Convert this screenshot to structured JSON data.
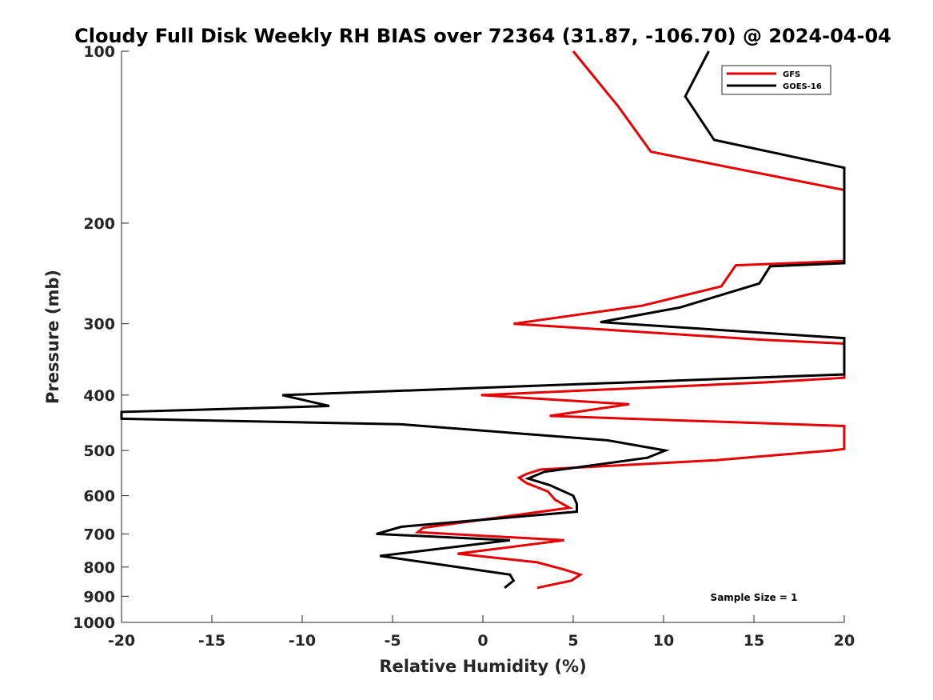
{
  "chart_data": {
    "type": "line",
    "title": "Cloudy Full Disk Weekly RH BIAS over 72364 (31.87, -106.70) @ 2024-04-04",
    "xlabel": "Relative Humidity (%)",
    "ylabel": "Pressure (mb)",
    "xlim": [
      -20,
      20
    ],
    "ylim": [
      100,
      1000
    ],
    "y_scale": "log",
    "y_reversed": true,
    "x_ticks": [
      "-20",
      "-15",
      "-10",
      "-5",
      "0",
      "5",
      "10",
      "15",
      "20"
    ],
    "y_ticks": [
      "100",
      "200",
      "300",
      "400",
      "500",
      "600",
      "700",
      "800",
      "900",
      "1000"
    ],
    "legend_position": "top-right",
    "annotation": "Sample Size = 1",
    "series": [
      {
        "name": "GFS",
        "color": "#e60000",
        "points": [
          [
            5.0,
            100
          ],
          [
            7.5,
            125
          ],
          [
            9.3,
            150
          ],
          [
            20,
            175
          ],
          [
            20,
            233
          ],
          [
            14.0,
            237
          ],
          [
            13.2,
            258
          ],
          [
            8.8,
            279
          ],
          [
            1.7,
            300
          ],
          [
            15.5,
            320
          ],
          [
            20,
            325
          ],
          [
            20,
            373
          ],
          [
            15.6,
            380
          ],
          [
            -0.1,
            400
          ],
          [
            8.1,
            415
          ],
          [
            3.7,
            435
          ],
          [
            20,
            453
          ],
          [
            20,
            497
          ],
          [
            19.3,
            500
          ],
          [
            12.9,
            520
          ],
          [
            3.2,
            540
          ],
          [
            2.4,
            550
          ],
          [
            2.0,
            558
          ],
          [
            2.4,
            570
          ],
          [
            3.6,
            590
          ],
          [
            4.0,
            610
          ],
          [
            4.8,
            630
          ],
          [
            -3.3,
            683
          ],
          [
            -3.6,
            695
          ],
          [
            4.5,
            718
          ],
          [
            -1.4,
            758
          ],
          [
            3.0,
            785
          ],
          [
            4.5,
            808
          ],
          [
            5.4,
            825
          ],
          [
            4.9,
            845
          ],
          [
            3.0,
            870
          ]
        ]
      },
      {
        "name": "GOES-16",
        "color": "#000000",
        "points": [
          [
            12.5,
            100
          ],
          [
            11.2,
            120
          ],
          [
            12.8,
            143
          ],
          [
            20,
            160
          ],
          [
            20,
            235
          ],
          [
            15.9,
            238
          ],
          [
            15.3,
            255
          ],
          [
            10.9,
            281
          ],
          [
            6.5,
            298
          ],
          [
            20,
            318
          ],
          [
            20,
            368
          ],
          [
            -11.1,
            400
          ],
          [
            -8.5,
            418
          ],
          [
            -20,
            428
          ],
          [
            -20,
            440
          ],
          [
            -4.5,
            450
          ],
          [
            6.9,
            480
          ],
          [
            10.1,
            500
          ],
          [
            9.1,
            515
          ],
          [
            3.4,
            545
          ],
          [
            2.5,
            560
          ],
          [
            3.7,
            575
          ],
          [
            5.0,
            600
          ],
          [
            5.2,
            620
          ],
          [
            5.2,
            640
          ],
          [
            -4.5,
            680
          ],
          [
            -5.9,
            700
          ],
          [
            1.5,
            718
          ],
          [
            -5.7,
            765
          ],
          [
            -2.6,
            790
          ],
          [
            1.5,
            825
          ],
          [
            1.7,
            845
          ],
          [
            1.2,
            870
          ]
        ]
      }
    ]
  }
}
